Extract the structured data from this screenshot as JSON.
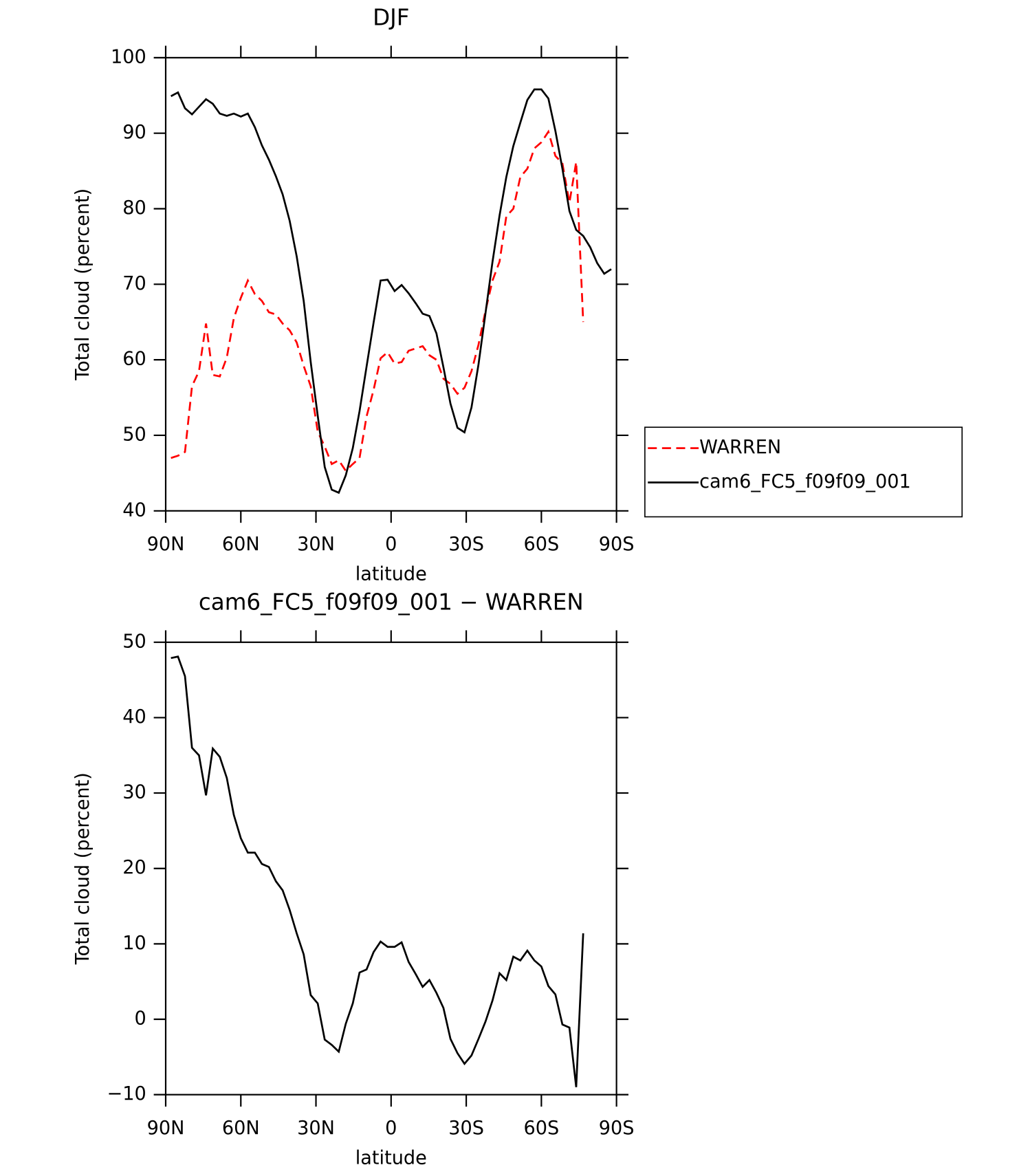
{
  "chart_data": [
    {
      "type": "line",
      "title": "DJF",
      "xlabel": "latitude",
      "ylabel": "Total cloud (percent)",
      "xlim": [
        90,
        -90
      ],
      "xticks": [
        {
          "value": 90,
          "label": "90N"
        },
        {
          "value": 60,
          "label": "60N"
        },
        {
          "value": 30,
          "label": "30N"
        },
        0,
        {
          "value": -30,
          "label": "30S"
        },
        {
          "value": -60,
          "label": "60S"
        },
        {
          "value": -90,
          "label": "90S"
        }
      ],
      "ylim": [
        40,
        100
      ],
      "yticks": [
        40,
        50,
        60,
        70,
        80,
        90,
        100
      ],
      "legend": "right",
      "x": [
        87.9,
        85.1,
        82.3,
        79.5,
        76.7,
        73.9,
        71.2,
        68.4,
        65.6,
        62.8,
        60.0,
        57.2,
        54.4,
        51.6,
        48.8,
        46.0,
        43.3,
        40.5,
        37.7,
        34.9,
        32.1,
        29.3,
        26.5,
        23.7,
        20.9,
        18.1,
        15.3,
        12.6,
        9.8,
        7.0,
        4.2,
        1.4,
        -1.4,
        -4.2,
        -7.0,
        -9.8,
        -12.6,
        -15.3,
        -18.1,
        -20.9,
        -23.7,
        -26.5,
        -29.3,
        -32.1,
        -34.9,
        -37.7,
        -40.5,
        -43.3,
        -46.0,
        -48.8,
        -51.6,
        -54.4,
        -57.2,
        -60.0,
        -62.8,
        -65.6,
        -68.4,
        -71.2,
        -73.9,
        -76.7,
        -79.5,
        -82.3,
        -85.1,
        -87.9
      ],
      "series": [
        {
          "name": "WARREN",
          "color": "#ff0000",
          "dash": "dashed",
          "values": [
            47.0,
            47.3,
            47.8,
            56.5,
            58.5,
            64.8,
            58.0,
            57.8,
            60.3,
            65.5,
            68.2,
            70.5,
            68.7,
            67.8,
            66.3,
            66.0,
            64.8,
            63.9,
            62.3,
            59.2,
            56.5,
            50.5,
            48.5,
            46.2,
            46.7,
            45.3,
            46.2,
            47.0,
            52.5,
            56.0,
            60.2,
            61.0,
            59.5,
            59.7,
            61.2,
            61.5,
            61.8,
            60.6,
            60.0,
            57.5,
            56.8,
            55.5,
            56.3,
            58.5,
            62.0,
            66.5,
            70.5,
            73.0,
            79.0,
            80.0,
            84.2,
            85.3,
            88.0,
            88.8,
            90.2,
            87.0,
            86.0,
            80.8,
            86.2,
            65.0,
            null,
            null,
            null,
            null
          ]
        },
        {
          "name": "cam6_FC5_f09f09_001",
          "color": "#000000",
          "dash": "solid",
          "values": [
            94.9,
            95.4,
            93.3,
            92.5,
            93.5,
            94.5,
            93.9,
            92.6,
            92.3,
            92.6,
            92.2,
            92.6,
            90.8,
            88.4,
            86.5,
            84.3,
            81.9,
            78.4,
            73.7,
            67.8,
            59.7,
            52.6,
            45.8,
            42.8,
            42.4,
            44.7,
            48.3,
            53.2,
            59.1,
            64.9,
            70.5,
            70.6,
            69.1,
            69.9,
            68.8,
            67.5,
            66.1,
            65.8,
            63.5,
            59.0,
            54.2,
            51.0,
            50.4,
            53.7,
            59.4,
            66.2,
            73.0,
            79.1,
            84.2,
            88.3,
            91.4,
            94.4,
            95.8,
            95.8,
            94.6,
            90.3,
            85.3,
            79.7,
            77.2,
            76.4,
            74.9,
            72.8,
            71.4,
            72.0
          ]
        }
      ]
    },
    {
      "type": "line",
      "title": "cam6_FC5_f09f09_001 − WARREN",
      "xlabel": "latitude",
      "ylabel": "Total cloud (percent)",
      "xlim": [
        90,
        -90
      ],
      "xticks": [
        {
          "value": 90,
          "label": "90N"
        },
        {
          "value": 60,
          "label": "60N"
        },
        {
          "value": 30,
          "label": "30N"
        },
        0,
        {
          "value": -30,
          "label": "30S"
        },
        {
          "value": -60,
          "label": "60S"
        },
        {
          "value": -90,
          "label": "90S"
        }
      ],
      "ylim": [
        -10,
        50
      ],
      "yticks": [
        {
          "value": -10,
          "label": "−10"
        },
        0,
        10,
        20,
        30,
        40,
        50
      ],
      "x": [
        87.9,
        85.1,
        82.3,
        79.5,
        76.7,
        73.9,
        71.2,
        68.4,
        65.6,
        62.8,
        60.0,
        57.2,
        54.4,
        51.6,
        48.8,
        46.0,
        43.3,
        40.5,
        37.7,
        34.9,
        32.1,
        29.3,
        26.5,
        23.7,
        20.9,
        18.1,
        15.3,
        12.6,
        9.8,
        7.0,
        4.2,
        1.4,
        -1.4,
        -4.2,
        -7.0,
        -9.8,
        -12.6,
        -15.3,
        -18.1,
        -20.9,
        -23.7,
        -26.5,
        -29.3,
        -32.1,
        -34.9,
        -37.7,
        -40.5,
        -43.3,
        -46.0,
        -48.8,
        -51.6,
        -54.4,
        -57.2,
        -60.0,
        -62.8,
        -65.6,
        -68.4,
        -71.2,
        -73.9,
        -76.7,
        -79.5,
        -82.3,
        -85.1,
        -87.9
      ],
      "series": [
        {
          "color": "#000000",
          "dash": "solid",
          "values": [
            47.9,
            48.1,
            45.5,
            36.0,
            35.0,
            29.7,
            35.9,
            34.8,
            32.0,
            27.1,
            24.0,
            22.1,
            22.1,
            20.6,
            20.2,
            18.3,
            17.1,
            14.5,
            11.4,
            8.6,
            3.2,
            2.1,
            -2.7,
            -3.4,
            -4.3,
            -0.6,
            2.1,
            6.2,
            6.6,
            8.9,
            10.3,
            9.6,
            9.6,
            10.2,
            7.6,
            6.0,
            4.3,
            5.2,
            3.5,
            1.5,
            -2.6,
            -4.5,
            -5.9,
            -4.8,
            -2.6,
            -0.3,
            2.5,
            6.1,
            5.2,
            8.3,
            7.8,
            9.1,
            7.8,
            7.0,
            4.4,
            3.3,
            -0.7,
            -1.1,
            -9.0,
            11.4,
            null,
            null,
            null,
            null
          ]
        }
      ]
    }
  ]
}
